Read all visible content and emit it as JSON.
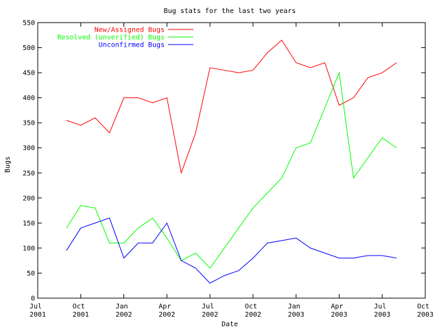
{
  "chart_data": {
    "type": "line",
    "title": "Bug stats for the last two years",
    "x_label": "Date",
    "y_label": "Bugs",
    "x": [
      "2001-09",
      "2001-10",
      "2001-11",
      "2001-12",
      "2002-01",
      "2002-02",
      "2002-03",
      "2002-04",
      "2002-05",
      "2002-06",
      "2002-07",
      "2002-08",
      "2002-09",
      "2002-10",
      "2002-11",
      "2002-12",
      "2003-01",
      "2003-02",
      "2003-03",
      "2003-04",
      "2003-05",
      "2003-06",
      "2003-07",
      "2003-08"
    ],
    "series": [
      {
        "name": "New/Assigned Bugs",
        "color": "#ff0000",
        "values": [
          355,
          345,
          360,
          330,
          400,
          400,
          390,
          400,
          250,
          330,
          460,
          455,
          450,
          455,
          490,
          515,
          470,
          460,
          470,
          385,
          400,
          440,
          450,
          470
        ]
      },
      {
        "name": "Resolved (unverified) Bugs",
        "color": "#00ff00",
        "values": [
          140,
          185,
          180,
          110,
          110,
          140,
          160,
          120,
          75,
          90,
          60,
          100,
          140,
          180,
          210,
          240,
          300,
          310,
          380,
          450,
          240,
          280,
          320,
          300
        ]
      },
      {
        "name": "Unconfirmed Bugs",
        "color": "#0000ff",
        "values": [
          95,
          140,
          150,
          160,
          80,
          110,
          110,
          150,
          75,
          60,
          30,
          45,
          55,
          80,
          110,
          115,
          120,
          100,
          90,
          80,
          80,
          85,
          85,
          80
        ]
      }
    ],
    "xlim": [
      "2001-07",
      "2003-10"
    ],
    "xticks": [
      {
        "value": "2001-07",
        "label": "Jul 2001"
      },
      {
        "value": "2001-10",
        "label": "Oct 2001"
      },
      {
        "value": "2002-01",
        "label": "Jan 2002"
      },
      {
        "value": "2002-04",
        "label": "Apr 2002"
      },
      {
        "value": "2002-07",
        "label": "Jul 2002"
      },
      {
        "value": "2002-10",
        "label": "Oct 2002"
      },
      {
        "value": "2003-01",
        "label": "Jan 2003"
      },
      {
        "value": "2003-04",
        "label": "Apr 2003"
      },
      {
        "value": "2003-07",
        "label": "Jul 2003"
      },
      {
        "value": "2003-10",
        "label": "Oct 2003"
      }
    ],
    "ylim": [
      0,
      550
    ],
    "yticks": [
      0,
      50,
      100,
      150,
      200,
      250,
      300,
      350,
      400,
      450,
      500,
      550
    ],
    "legend": "top-left",
    "grid": false
  }
}
